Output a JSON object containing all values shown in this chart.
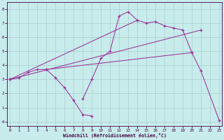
{
  "xlabel": "Windchill (Refroidissement éolien,°C)",
  "background_color": "#c8ecec",
  "grid_color": "#aacccc",
  "line_color": "#993399",
  "spine_color": "#440044",
  "xticks": [
    0,
    1,
    2,
    3,
    4,
    5,
    6,
    7,
    8,
    9,
    10,
    11,
    12,
    13,
    14,
    15,
    16,
    17,
    18,
    19,
    20,
    21,
    22,
    23
  ],
  "yticks": [
    0,
    1,
    2,
    3,
    4,
    5,
    6,
    7,
    8
  ],
  "xlim": [
    -0.3,
    23.3
  ],
  "ylim": [
    -0.3,
    8.5
  ],
  "series": [
    {
      "x": [
        0,
        1,
        2,
        3,
        4,
        5,
        6,
        7,
        8,
        9
      ],
      "y": [
        3.0,
        3.1,
        3.5,
        3.7,
        3.7,
        3.1,
        2.4,
        1.5,
        0.5,
        0.4
      ]
    },
    {
      "x": [
        8,
        9,
        10,
        11,
        12,
        13,
        14,
        15,
        16,
        17,
        18,
        19,
        20,
        21,
        23
      ],
      "y": [
        1.6,
        3.0,
        4.5,
        5.0,
        7.5,
        7.8,
        7.2,
        7.0,
        7.1,
        6.8,
        6.65,
        6.5,
        4.9,
        3.6,
        0.1
      ]
    },
    {
      "x": [
        0,
        14
      ],
      "y": [
        3.0,
        7.2
      ]
    },
    {
      "x": [
        0,
        21
      ],
      "y": [
        3.0,
        6.5
      ]
    },
    {
      "x": [
        4,
        20
      ],
      "y": [
        3.7,
        4.9
      ]
    }
  ]
}
